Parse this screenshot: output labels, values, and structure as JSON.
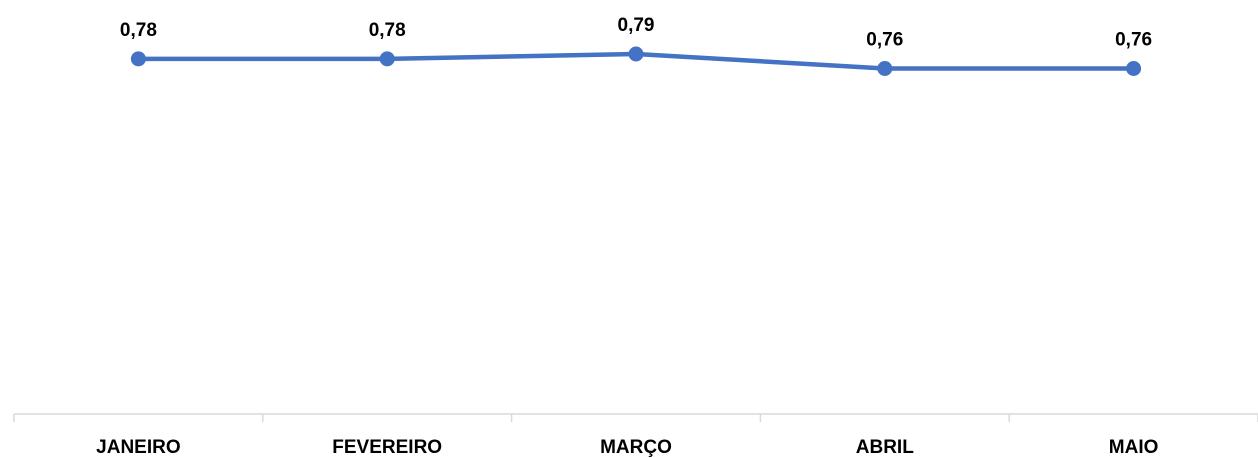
{
  "chart_data": {
    "type": "line",
    "categories": [
      "JANEIRO",
      "FEVEREIRO",
      "MARÇO",
      "ABRIL",
      "MAIO"
    ],
    "series": [
      {
        "values": [
          0.78,
          0.78,
          0.79,
          0.76,
          0.76
        ],
        "labels": [
          "0,78",
          "0,78",
          "0,79",
          "0,76",
          "0,76"
        ],
        "color": "#4472C4"
      }
    ],
    "data_labels": true,
    "grid": false,
    "legend": "none"
  }
}
